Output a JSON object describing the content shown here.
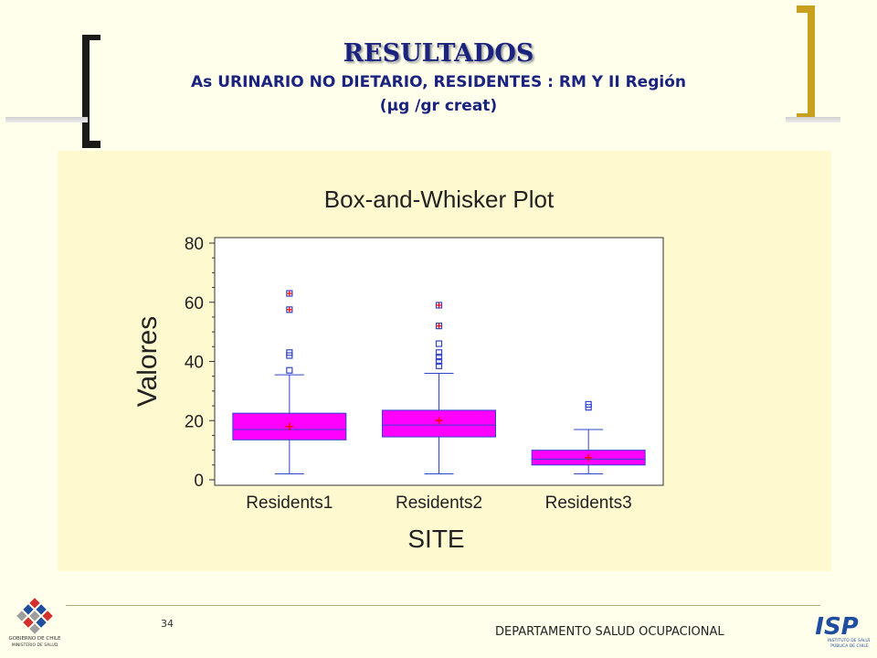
{
  "slide": {
    "title": "RESULTADOS",
    "subtitle": "As URINARIO NO DIETARIO, RESIDENTES : RM Y II Región",
    "unit_line": "(µg /gr creat)",
    "page_number": "34",
    "footer_text": "DEPARTAMENTO SALUD OCUPACIONAL",
    "logos": {
      "left": "GOBIERNO DE CHILE · MINISTERIO DE SALUD",
      "right": "ISP INSTITUTO DE SALUD PÚBLICA DE CHILE"
    }
  },
  "colors": {
    "background": "#FFFFEB",
    "plot_background": "#FFF9D0",
    "title": "#1A237E",
    "bracket_dark": "#1A1A1A",
    "bracket_gold": "#C9A01E",
    "box_fill": "#FF00FF",
    "whisker": "#3344CC",
    "mean_marker": "#FF0000",
    "outlier": "#3344CC"
  },
  "chart_data": {
    "type": "box",
    "title": "Box-and-Whisker Plot",
    "xlabel": "SITE",
    "ylabel": "Valores",
    "ylim": [
      0,
      80
    ],
    "yticks": [
      0,
      20,
      40,
      60,
      80
    ],
    "grid": false,
    "categories": [
      "Residents1",
      "Residents2",
      "Residents3"
    ],
    "series": [
      {
        "category": "Residents1",
        "min": 2,
        "q1": 13.5,
        "median": 17,
        "q3": 22.5,
        "max": 35.5,
        "mean": 18,
        "outliers": [
          37,
          42,
          43,
          57.5,
          63
        ]
      },
      {
        "category": "Residents2",
        "min": 2,
        "q1": 14.5,
        "median": 18.5,
        "q3": 23.5,
        "max": 36,
        "mean": 20,
        "outliers": [
          38.5,
          40,
          41.5,
          43,
          46,
          52,
          59
        ]
      },
      {
        "category": "Residents3",
        "min": 2,
        "q1": 5,
        "median": 7,
        "q3": 10,
        "max": 17,
        "mean": 7.5,
        "outliers": [
          24.5,
          25.5
        ]
      }
    ]
  }
}
